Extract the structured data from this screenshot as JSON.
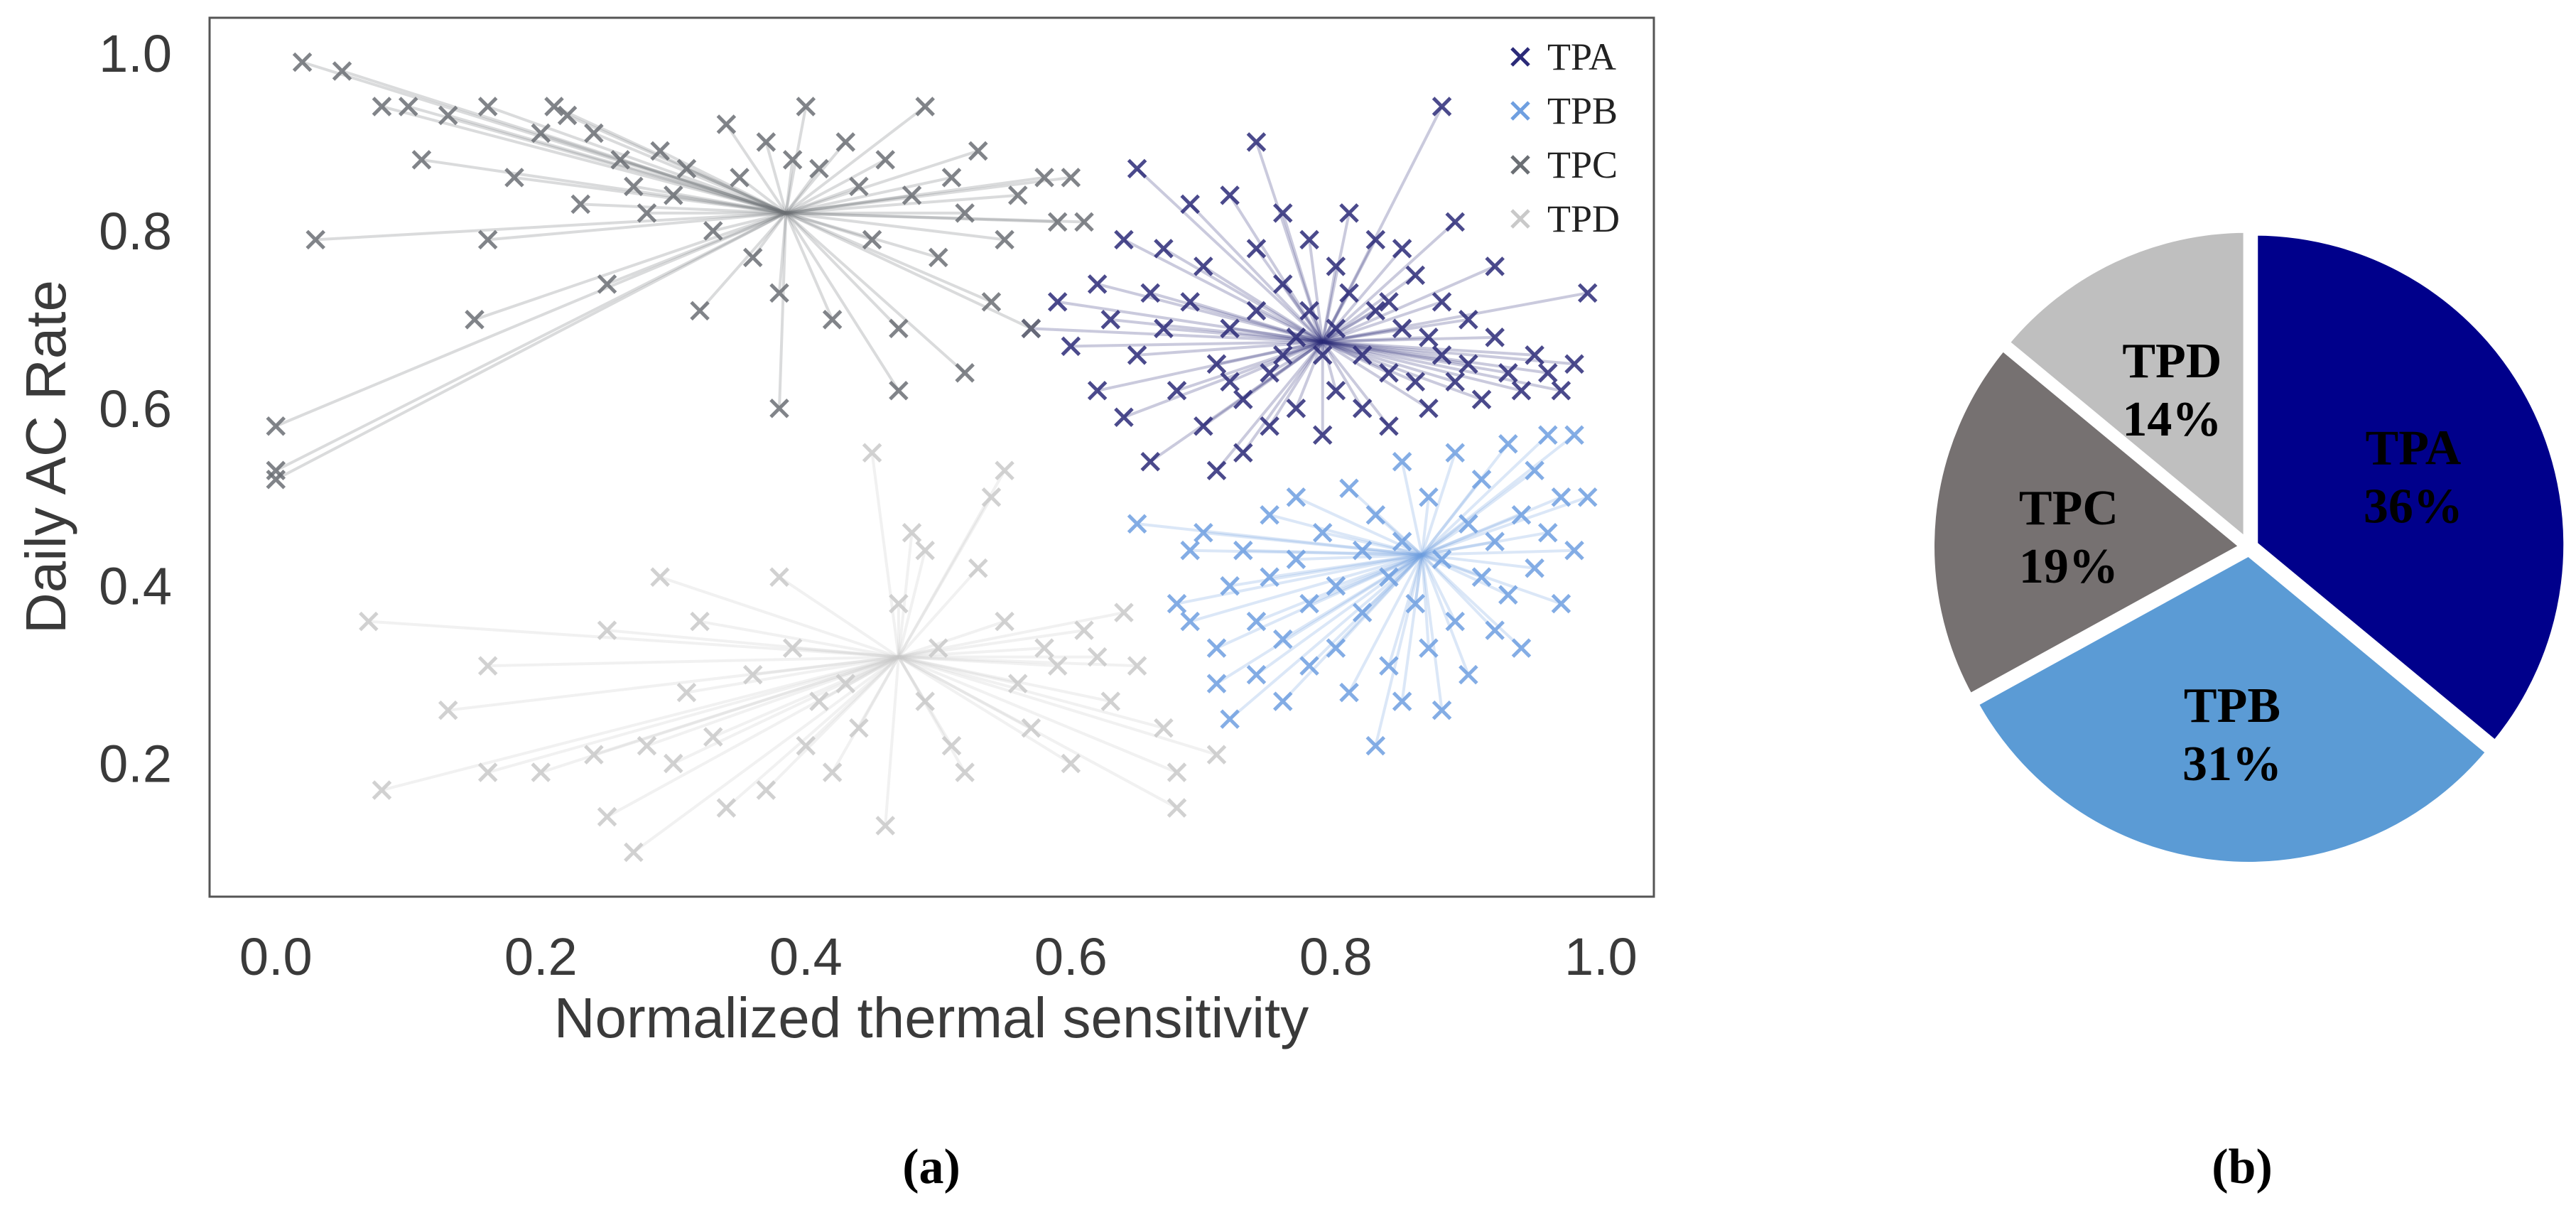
{
  "chart_data": [
    {
      "type": "scatter",
      "xlabel": "Normalized thermal sensitivity",
      "ylabel": "Daily AC Rate",
      "xlim": [
        -0.05,
        1.04
      ],
      "ylim": [
        0.05,
        1.04
      ],
      "xticks": [
        "0.0",
        "0.2",
        "0.4",
        "0.6",
        "0.8",
        "1.0"
      ],
      "yticks": [
        "0.2",
        "0.4",
        "0.6",
        "0.8",
        "1.0"
      ],
      "grid": false,
      "legend_position": "top-right",
      "marker": "x",
      "panel_label": "(a)",
      "series": [
        {
          "name": "TPA",
          "color": "#2b2a78",
          "centroid": [
            0.79,
            0.675
          ],
          "points": [
            [
              0.57,
              0.69
            ],
            [
              0.59,
              0.72
            ],
            [
              0.6,
              0.67
            ],
            [
              0.62,
              0.74
            ],
            [
              0.62,
              0.62
            ],
            [
              0.63,
              0.7
            ],
            [
              0.64,
              0.79
            ],
            [
              0.64,
              0.59
            ],
            [
              0.65,
              0.87
            ],
            [
              0.65,
              0.66
            ],
            [
              0.66,
              0.73
            ],
            [
              0.66,
              0.54
            ],
            [
              0.67,
              0.78
            ],
            [
              0.67,
              0.69
            ],
            [
              0.68,
              0.62
            ],
            [
              0.69,
              0.83
            ],
            [
              0.69,
              0.72
            ],
            [
              0.7,
              0.58
            ],
            [
              0.7,
              0.76
            ],
            [
              0.71,
              0.65
            ],
            [
              0.71,
              0.53
            ],
            [
              0.72,
              0.84
            ],
            [
              0.72,
              0.69
            ],
            [
              0.73,
              0.61
            ],
            [
              0.73,
              0.55
            ],
            [
              0.74,
              0.9
            ],
            [
              0.74,
              0.78
            ],
            [
              0.74,
              0.71
            ],
            [
              0.75,
              0.64
            ],
            [
              0.75,
              0.58
            ],
            [
              0.76,
              0.82
            ],
            [
              0.76,
              0.74
            ],
            [
              0.77,
              0.68
            ],
            [
              0.77,
              0.6
            ],
            [
              0.78,
              0.79
            ],
            [
              0.78,
              0.71
            ],
            [
              0.79,
              0.66
            ],
            [
              0.79,
              0.57
            ],
            [
              0.8,
              0.76
            ],
            [
              0.8,
              0.69
            ],
            [
              0.8,
              0.62
            ],
            [
              0.81,
              0.82
            ],
            [
              0.81,
              0.73
            ],
            [
              0.82,
              0.66
            ],
            [
              0.82,
              0.6
            ],
            [
              0.83,
              0.79
            ],
            [
              0.83,
              0.71
            ],
            [
              0.84,
              0.64
            ],
            [
              0.84,
              0.58
            ],
            [
              0.85,
              0.78
            ],
            [
              0.85,
              0.69
            ],
            [
              0.86,
              0.63
            ],
            [
              0.86,
              0.75
            ],
            [
              0.87,
              0.68
            ],
            [
              0.87,
              0.6
            ],
            [
              0.88,
              0.94
            ],
            [
              0.88,
              0.72
            ],
            [
              0.88,
              0.66
            ],
            [
              0.89,
              0.81
            ],
            [
              0.89,
              0.63
            ],
            [
              0.9,
              0.7
            ],
            [
              0.9,
              0.65
            ],
            [
              0.91,
              0.61
            ],
            [
              0.92,
              0.68
            ],
            [
              0.92,
              0.76
            ],
            [
              0.93,
              0.64
            ],
            [
              0.94,
              0.62
            ],
            [
              0.95,
              0.66
            ],
            [
              0.96,
              0.64
            ],
            [
              0.97,
              0.62
            ],
            [
              0.98,
              0.65
            ],
            [
              0.99,
              0.73
            ],
            [
              0.84,
              0.72
            ],
            [
              0.76,
              0.66
            ],
            [
              0.72,
              0.63
            ]
          ]
        },
        {
          "name": "TPB",
          "color": "#6f9fe0",
          "centroid": [
            0.865,
            0.435
          ],
          "points": [
            [
              0.65,
              0.47
            ],
            [
              0.68,
              0.38
            ],
            [
              0.69,
              0.36
            ],
            [
              0.69,
              0.44
            ],
            [
              0.7,
              0.46
            ],
            [
              0.71,
              0.33
            ],
            [
              0.71,
              0.29
            ],
            [
              0.72,
              0.25
            ],
            [
              0.72,
              0.4
            ],
            [
              0.73,
              0.44
            ],
            [
              0.74,
              0.36
            ],
            [
              0.74,
              0.3
            ],
            [
              0.75,
              0.48
            ],
            [
              0.75,
              0.41
            ],
            [
              0.76,
              0.34
            ],
            [
              0.76,
              0.27
            ],
            [
              0.77,
              0.43
            ],
            [
              0.77,
              0.5
            ],
            [
              0.78,
              0.38
            ],
            [
              0.78,
              0.31
            ],
            [
              0.79,
              0.46
            ],
            [
              0.8,
              0.4
            ],
            [
              0.8,
              0.33
            ],
            [
              0.81,
              0.51
            ],
            [
              0.81,
              0.28
            ],
            [
              0.82,
              0.44
            ],
            [
              0.82,
              0.37
            ],
            [
              0.83,
              0.22
            ],
            [
              0.83,
              0.48
            ],
            [
              0.84,
              0.41
            ],
            [
              0.84,
              0.31
            ],
            [
              0.85,
              0.54
            ],
            [
              0.85,
              0.45
            ],
            [
              0.85,
              0.27
            ],
            [
              0.86,
              0.38
            ],
            [
              0.87,
              0.5
            ],
            [
              0.87,
              0.33
            ],
            [
              0.88,
              0.43
            ],
            [
              0.88,
              0.26
            ],
            [
              0.89,
              0.55
            ],
            [
              0.89,
              0.36
            ],
            [
              0.9,
              0.47
            ],
            [
              0.9,
              0.3
            ],
            [
              0.91,
              0.41
            ],
            [
              0.91,
              0.52
            ],
            [
              0.92,
              0.35
            ],
            [
              0.92,
              0.45
            ],
            [
              0.93,
              0.56
            ],
            [
              0.93,
              0.39
            ],
            [
              0.94,
              0.48
            ],
            [
              0.94,
              0.33
            ],
            [
              0.95,
              0.53
            ],
            [
              0.95,
              0.42
            ],
            [
              0.96,
              0.57
            ],
            [
              0.96,
              0.46
            ],
            [
              0.97,
              0.5
            ],
            [
              0.97,
              0.38
            ],
            [
              0.98,
              0.57
            ],
            [
              0.98,
              0.44
            ],
            [
              0.99,
              0.5
            ]
          ]
        },
        {
          "name": "TPC",
          "color": "#6b6f74",
          "centroid": [
            0.385,
            0.82
          ],
          "points": [
            [
              0.0,
              0.53
            ],
            [
              0.0,
              0.52
            ],
            [
              0.0,
              0.58
            ],
            [
              0.02,
              0.99
            ],
            [
              0.03,
              0.79
            ],
            [
              0.05,
              0.98
            ],
            [
              0.08,
              0.94
            ],
            [
              0.1,
              0.94
            ],
            [
              0.11,
              0.88
            ],
            [
              0.13,
              0.93
            ],
            [
              0.15,
              0.7
            ],
            [
              0.16,
              0.94
            ],
            [
              0.16,
              0.79
            ],
            [
              0.18,
              0.86
            ],
            [
              0.2,
              0.91
            ],
            [
              0.21,
              0.94
            ],
            [
              0.22,
              0.93
            ],
            [
              0.23,
              0.83
            ],
            [
              0.24,
              0.91
            ],
            [
              0.25,
              0.74
            ],
            [
              0.26,
              0.88
            ],
            [
              0.27,
              0.85
            ],
            [
              0.28,
              0.82
            ],
            [
              0.29,
              0.89
            ],
            [
              0.3,
              0.84
            ],
            [
              0.31,
              0.87
            ],
            [
              0.32,
              0.71
            ],
            [
              0.33,
              0.8
            ],
            [
              0.34,
              0.92
            ],
            [
              0.35,
              0.86
            ],
            [
              0.36,
              0.77
            ],
            [
              0.37,
              0.9
            ],
            [
              0.38,
              0.6
            ],
            [
              0.38,
              0.73
            ],
            [
              0.39,
              0.88
            ],
            [
              0.4,
              0.94
            ],
            [
              0.41,
              0.87
            ],
            [
              0.42,
              0.7
            ],
            [
              0.43,
              0.9
            ],
            [
              0.44,
              0.85
            ],
            [
              0.45,
              0.79
            ],
            [
              0.46,
              0.88
            ],
            [
              0.47,
              0.69
            ],
            [
              0.48,
              0.84
            ],
            [
              0.49,
              0.94
            ],
            [
              0.5,
              0.77
            ],
            [
              0.51,
              0.86
            ],
            [
              0.52,
              0.82
            ],
            [
              0.53,
              0.89
            ],
            [
              0.54,
              0.72
            ],
            [
              0.55,
              0.79
            ],
            [
              0.56,
              0.84
            ],
            [
              0.57,
              0.69
            ],
            [
              0.58,
              0.86
            ],
            [
              0.59,
              0.81
            ],
            [
              0.6,
              0.86
            ],
            [
              0.61,
              0.81
            ],
            [
              0.52,
              0.64
            ],
            [
              0.47,
              0.62
            ]
          ]
        },
        {
          "name": "TPD",
          "color": "#c9c9c9",
          "centroid": [
            0.47,
            0.32
          ],
          "points": [
            [
              0.07,
              0.36
            ],
            [
              0.08,
              0.17
            ],
            [
              0.13,
              0.26
            ],
            [
              0.16,
              0.31
            ],
            [
              0.16,
              0.19
            ],
            [
              0.2,
              0.19
            ],
            [
              0.24,
              0.21
            ],
            [
              0.25,
              0.14
            ],
            [
              0.25,
              0.35
            ],
            [
              0.27,
              0.1
            ],
            [
              0.28,
              0.22
            ],
            [
              0.29,
              0.41
            ],
            [
              0.3,
              0.2
            ],
            [
              0.31,
              0.28
            ],
            [
              0.32,
              0.36
            ],
            [
              0.33,
              0.23
            ],
            [
              0.34,
              0.15
            ],
            [
              0.36,
              0.3
            ],
            [
              0.37,
              0.17
            ],
            [
              0.38,
              0.41
            ],
            [
              0.39,
              0.33
            ],
            [
              0.4,
              0.22
            ],
            [
              0.41,
              0.27
            ],
            [
              0.42,
              0.19
            ],
            [
              0.43,
              0.29
            ],
            [
              0.44,
              0.24
            ],
            [
              0.45,
              0.55
            ],
            [
              0.46,
              0.13
            ],
            [
              0.47,
              0.38
            ],
            [
              0.48,
              0.46
            ],
            [
              0.49,
              0.27
            ],
            [
              0.5,
              0.33
            ],
            [
              0.51,
              0.22
            ],
            [
              0.52,
              0.19
            ],
            [
              0.53,
              0.42
            ],
            [
              0.54,
              0.5
            ],
            [
              0.55,
              0.36
            ],
            [
              0.56,
              0.29
            ],
            [
              0.57,
              0.24
            ],
            [
              0.58,
              0.33
            ],
            [
              0.59,
              0.31
            ],
            [
              0.6,
              0.2
            ],
            [
              0.61,
              0.35
            ],
            [
              0.62,
              0.32
            ],
            [
              0.63,
              0.27
            ],
            [
              0.64,
              0.37
            ],
            [
              0.65,
              0.31
            ],
            [
              0.67,
              0.24
            ],
            [
              0.68,
              0.19
            ],
            [
              0.68,
              0.15
            ],
            [
              0.71,
              0.21
            ],
            [
              0.55,
              0.53
            ],
            [
              0.49,
              0.44
            ]
          ]
        }
      ]
    },
    {
      "type": "pie",
      "panel_label": "(b)",
      "slices": [
        {
          "label": "TPA",
          "value": 36,
          "percent_label": "36%",
          "color": "#00008b"
        },
        {
          "label": "TPB",
          "value": 31,
          "percent_label": "31%",
          "color": "#5b9bd5"
        },
        {
          "label": "TPC",
          "value": 19,
          "percent_label": "19%",
          "color": "#767171"
        },
        {
          "label": "TPD",
          "value": 14,
          "percent_label": "14%",
          "color": "#bfbfbf"
        }
      ]
    }
  ]
}
